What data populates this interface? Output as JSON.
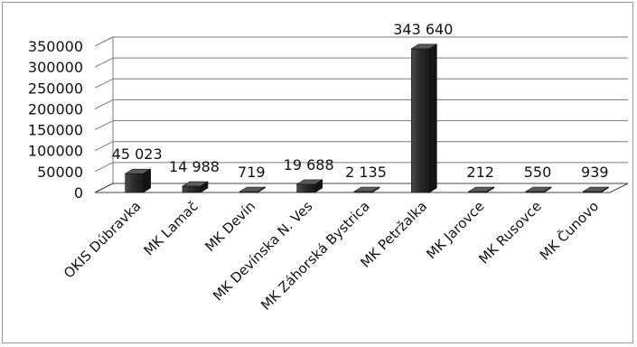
{
  "chart_data": {
    "type": "bar",
    "style": "3d-column",
    "categories": [
      "OKIS Dúbravka",
      "MK Lamač",
      "MK Devín",
      "MK Devínska N. Ves",
      "MK Záhorská Bystrica",
      "MK Petržalka",
      "MK Jarovce",
      "MK Rusovce",
      "MK Čunovo"
    ],
    "values": [
      45023,
      14988,
      719,
      19688,
      2135,
      343640,
      212,
      550,
      939
    ],
    "data_labels": [
      "45 023",
      "14 988",
      "719",
      "19 688",
      "2 135",
      "343 640",
      "212",
      "550",
      "939"
    ],
    "yticks": [
      "0",
      "50000",
      "100000",
      "150000",
      "200000",
      "250000",
      "300000",
      "350000"
    ],
    "ylim": [
      0,
      350000
    ],
    "grid": true,
    "legend": "none",
    "bar_color": "#2b2b2b",
    "gridline_color": "#7a7a7a"
  }
}
